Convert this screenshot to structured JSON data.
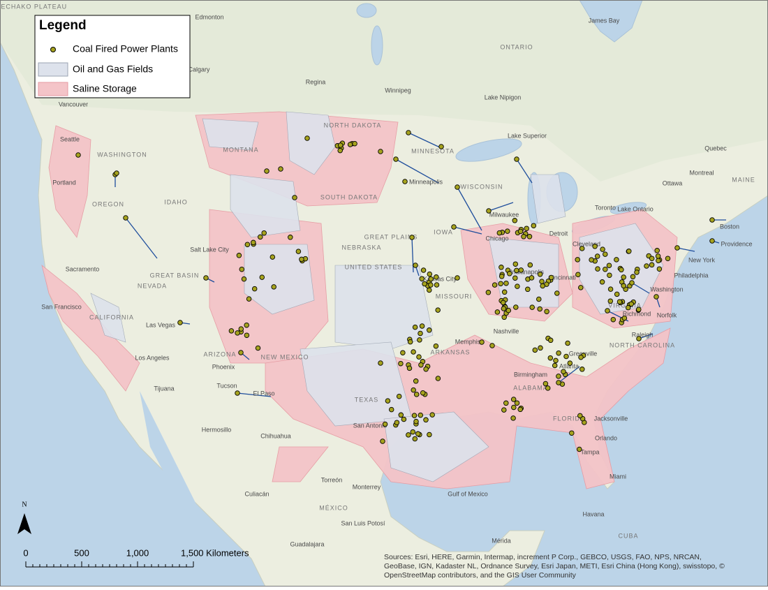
{
  "legend": {
    "title": "Legend",
    "items": [
      "Coal Fired Power Plants",
      "Oil and Gas Fields",
      "Saline Storage"
    ]
  },
  "map": {
    "labels": [
      "NECHAKO PLATEAU",
      "Edmonton",
      "Calgary",
      "Regina",
      "Winnipeg",
      "ONTARIO",
      "Lake Nipigon",
      "Lake Superior",
      "James Bay",
      "Quebec",
      "Montreal",
      "Ottawa",
      "MAINE",
      "Toronto",
      "Lake Ontario",
      "Boston",
      "Providence",
      "New York",
      "Philadelphia",
      "Washington",
      "Richmond",
      "Norfolk",
      "VIRGINIA",
      "Raleigh",
      "NORTH CAROLINA",
      "Vancouver",
      "Seattle",
      "WASHINGTON",
      "Portland",
      "OREGON",
      "IDAHO",
      "MONTANA",
      "NORTH DAKOTA",
      "SOUTH DAKOTA",
      "MINNESOTA",
      "Minneapolis",
      "WISCONSIN",
      "Milwaukee",
      "Chicago",
      "IOWA",
      "NEBRASKA",
      "GREAT PLAINS",
      "UNITED STATES",
      "Kansas City",
      "MISSOURI",
      "Salt Lake City",
      "GREAT BASIN",
      "NEVADA",
      "Sacramento",
      "San Francisco",
      "CALIFORNIA",
      "Las Vegas",
      "Los Angeles",
      "Phoenix",
      "ARIZONA",
      "NEW MEXICO",
      "Tucson",
      "El Paso",
      "Tijuana",
      "Hermosillo",
      "Chihuahua",
      "TEXAS",
      "San Antonio",
      "Memphis",
      "ARKANSAS",
      "Nashville",
      "Atlanta",
      "ALABAMA",
      "Birmingham",
      "Greenville",
      "Jacksonville",
      "Orlando",
      "Tampa",
      "FLORIDA",
      "Miami",
      "Gulf of Mexico",
      "MÉXICO",
      "Monterrey",
      "Torreón",
      "Culiacán",
      "San Luis Potosí",
      "Guadalajara",
      "Havana",
      "CUBA",
      "Mérida",
      "Indianapolis",
      "Cincinnati",
      "Cleveland",
      "Detroit"
    ]
  },
  "north_arrow": "N",
  "scale_bar": {
    "labels": [
      "0",
      "500",
      "1,000",
      "1,500 Kilometers"
    ]
  },
  "attribution": [
    "Sources: Esri, HERE, Garmin, Intermap, increment P Corp., GEBCO, USGS, FAO, NPS, NRCAN,",
    "GeoBase, IGN, Kadaster NL, Ordnance Survey, Esri Japan, METI, Esri China (Hong Kong), swisstopo, ©",
    "OpenStreetMap contributors, and the GIS User Community"
  ]
}
